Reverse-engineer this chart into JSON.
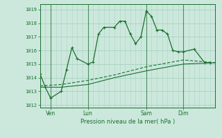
{
  "background_color": "#cce8dc",
  "grid_color": "#aad4c4",
  "line_color": "#1a6e2e",
  "xlabel": "Pression niveau de la mer( hPa )",
  "ylabel_ticks": [
    1012,
    1013,
    1014,
    1015,
    1016,
    1017,
    1018,
    1019
  ],
  "ylim": [
    1011.8,
    1019.4
  ],
  "xtick_labels": [
    "Ven",
    "Lun",
    "Sam",
    "Dim"
  ],
  "xtick_positions": [
    2,
    9,
    20,
    27
  ],
  "xlim": [
    0,
    33
  ],
  "vlines_x": [
    2,
    9,
    20,
    27
  ],
  "line1_x": [
    0,
    1,
    2,
    4,
    5,
    6,
    7,
    9,
    10,
    11,
    12,
    14,
    15,
    16,
    17,
    18,
    19,
    20,
    21,
    22,
    23,
    24,
    25,
    26,
    27,
    29,
    31,
    32
  ],
  "line1_y": [
    1014.3,
    1013.3,
    1012.5,
    1013.0,
    1014.6,
    1016.2,
    1015.4,
    1015.0,
    1015.15,
    1017.2,
    1017.7,
    1017.7,
    1018.15,
    1018.15,
    1017.2,
    1016.5,
    1017.0,
    1018.9,
    1018.5,
    1017.5,
    1017.5,
    1017.2,
    1016.0,
    1015.9,
    1015.9,
    1016.1,
    1015.1,
    1015.1
  ],
  "line2_x": [
    0,
    4,
    9,
    14,
    20,
    27,
    33
  ],
  "line2_y": [
    1013.4,
    1013.5,
    1013.8,
    1014.2,
    1014.8,
    1015.3,
    1015.1
  ],
  "line3_x": [
    0,
    4,
    9,
    14,
    20,
    27,
    33
  ],
  "line3_y": [
    1013.3,
    1013.3,
    1013.5,
    1014.0,
    1014.5,
    1015.0,
    1015.1
  ]
}
